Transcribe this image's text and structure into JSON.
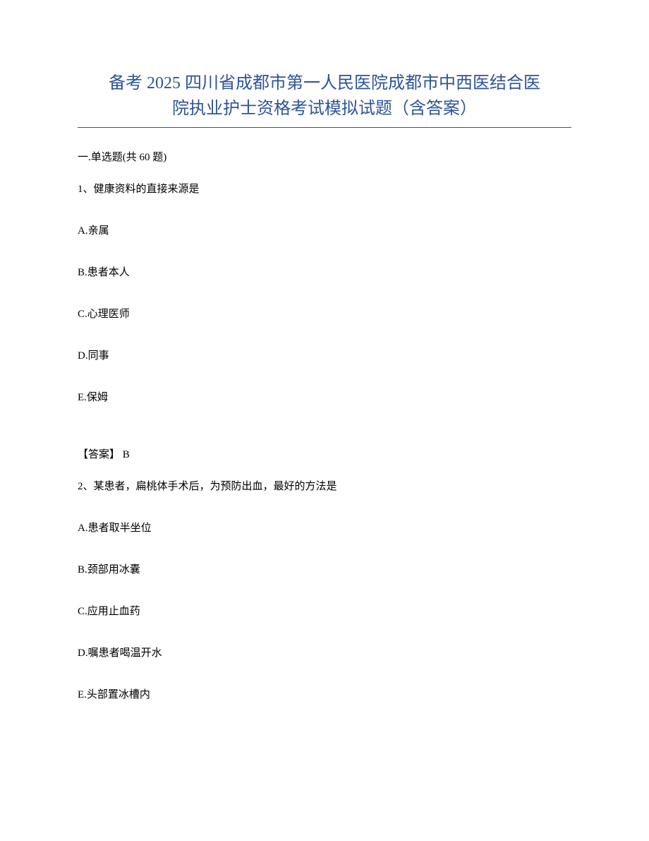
{
  "title": {
    "line1": "备考 2025 四川省成都市第一人民医院成都市中西医结合医",
    "line2": "院执业护士资格考试模拟试题（含答案）",
    "color": "#2e5496",
    "fontsize": 24,
    "underline_color": "#2e5496"
  },
  "section": {
    "header": "一.单选题(共 60 题)"
  },
  "question1": {
    "stem": "1、健康资料的直接来源是",
    "options": {
      "A": "A.亲属",
      "B": "B.患者本人",
      "C": "C.心理医师",
      "D": "D.同事",
      "E": "E.保姆"
    },
    "answer": "【答案】 B"
  },
  "question2": {
    "stem": "2、某患者，扁桃体手术后，为预防出血，最好的方法是",
    "options": {
      "A": "A.患者取半坐位",
      "B": "B.颈部用冰囊",
      "C": "C.应用止血药",
      "D": "D.嘱患者喝温开水",
      "E": "E.头部置冰槽内"
    }
  },
  "styling": {
    "body_fontsize": 15,
    "body_color": "#000000",
    "background_color": "#ffffff",
    "option_spacing": 38,
    "font_family": "SimSun"
  }
}
